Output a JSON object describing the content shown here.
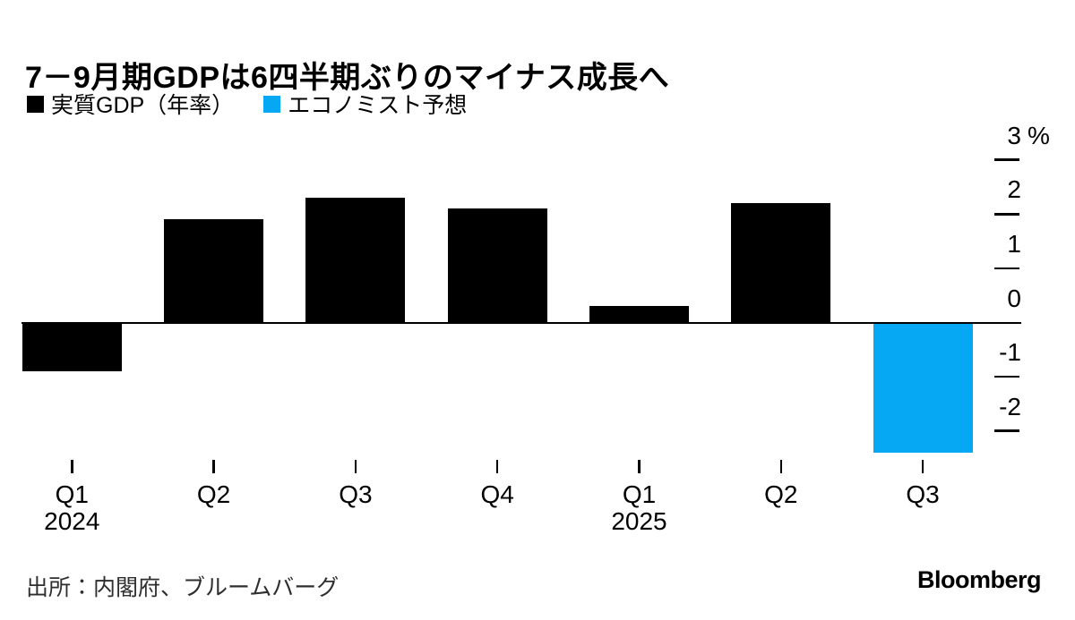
{
  "title": "7－9月期GDPは6四半期ぶりのマイナス成長へ",
  "legend": [
    {
      "id": "actual",
      "label": "実質GDP（年率）",
      "color": "#000000"
    },
    {
      "id": "forecast",
      "label": "エコノミスト予想",
      "color": "#07A8F3"
    }
  ],
  "footer": {
    "source": "出所：内閣府、ブルームバーグ",
    "logo": "Bloomberg"
  },
  "chart_data": {
    "type": "bar",
    "title": "7－9月期GDPは6四半期ぶりのマイナス成長へ",
    "unit": "%",
    "grid": false,
    "legend_position": "top-left",
    "axis_side": "right",
    "ylim": [
      -2.6,
      3.4
    ],
    "y_axis": {
      "unit": "%",
      "ticks": [
        3,
        2,
        1,
        0,
        -1,
        -2
      ]
    },
    "series_colors": {
      "actual": "#000000",
      "forecast": "#07A8F3"
    },
    "bars": [
      {
        "label": "Q1",
        "year": "2024",
        "value": -0.9,
        "series": "actual"
      },
      {
        "label": "Q2",
        "value": 1.9,
        "series": "actual"
      },
      {
        "label": "Q3",
        "value": 2.3,
        "series": "actual"
      },
      {
        "label": "Q4",
        "value": 2.1,
        "series": "actual"
      },
      {
        "label": "Q1",
        "year": "2025",
        "value": 0.3,
        "series": "actual"
      },
      {
        "label": "Q2",
        "value": 2.2,
        "series": "actual"
      },
      {
        "label": "Q3",
        "value": -2.4,
        "series": "forecast"
      }
    ]
  }
}
